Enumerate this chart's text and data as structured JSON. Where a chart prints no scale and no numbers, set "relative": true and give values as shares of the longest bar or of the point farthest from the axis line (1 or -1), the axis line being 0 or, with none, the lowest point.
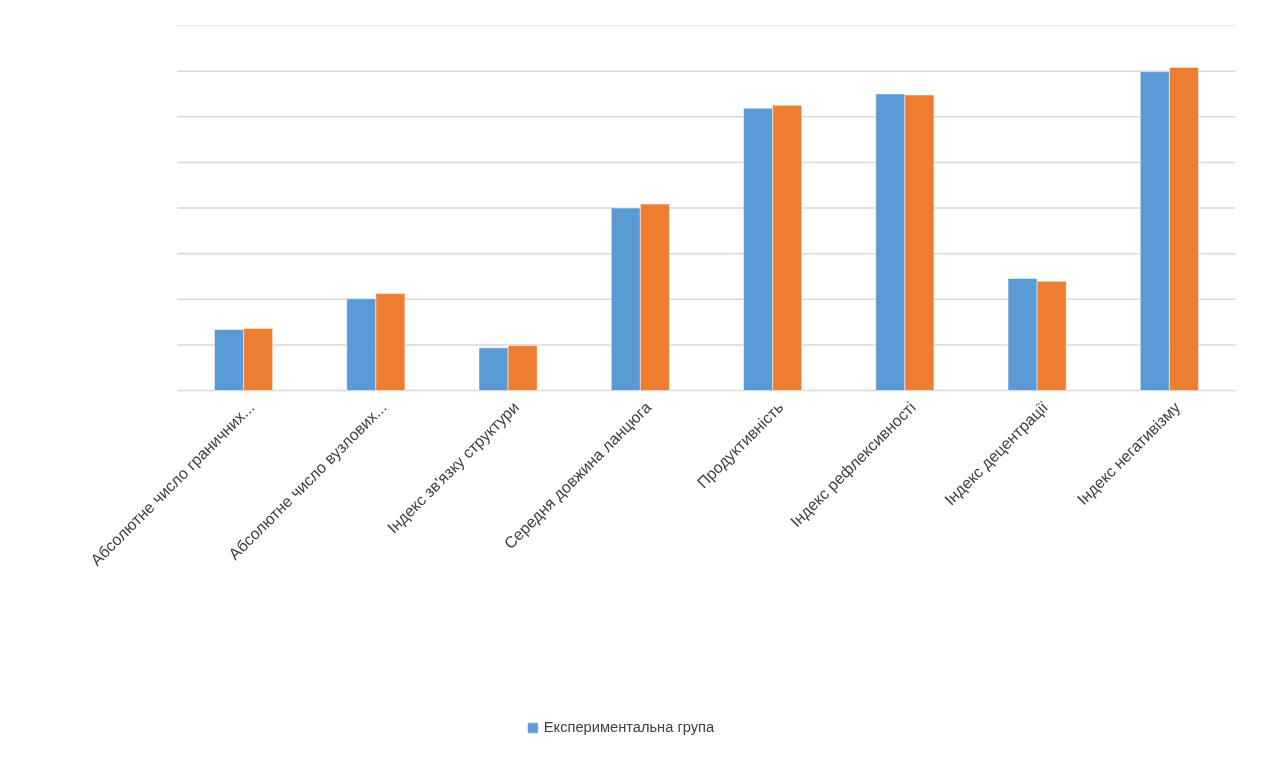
{
  "chart_data": {
    "type": "bar",
    "relative": true,
    "grid": "y",
    "legend": "bottom",
    "categories": [
      "Абсолютне число граничних...",
      "Абсолютне число вузлових...",
      "Індекс зв'язку структури",
      "Середня довжина ланцюга",
      "Продуктивність",
      "Індекс рефлексивності",
      "Індекс децентрації",
      "Індекс негативізму"
    ],
    "series": [
      {
        "name": "Експериментальна група",
        "color": "#5b9bd5",
        "values": [
          0.189,
          0.284,
          0.132,
          0.565,
          0.874,
          0.918,
          0.347,
          0.987
        ]
      },
      {
        "color": "#ed7d31",
        "values": [
          0.192,
          0.3,
          0.139,
          0.577,
          0.883,
          0.915,
          0.338,
          1.0
        ]
      }
    ]
  }
}
